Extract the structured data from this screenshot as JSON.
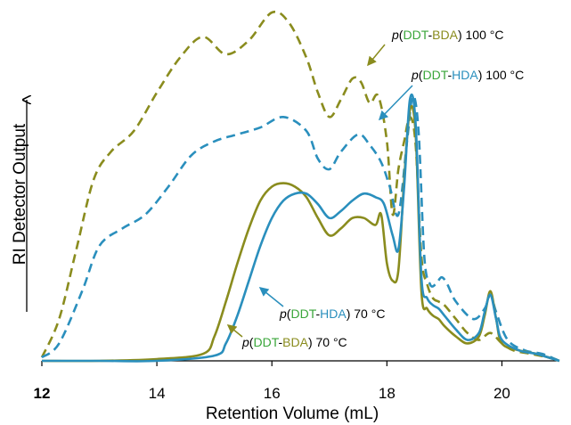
{
  "chart_data": {
    "type": "line",
    "xlabel": "Retention Volume (mL)",
    "ylabel": "RI Detector Output",
    "xlim": [
      12,
      21.0
    ],
    "ylim": [
      0,
      1.0
    ],
    "xticks": [
      12,
      14,
      16,
      18,
      20
    ],
    "xtick_labels": [
      "12",
      "14",
      "16",
      "18",
      "20"
    ],
    "grid": false,
    "legend": "none",
    "colors": {
      "bda": "#8a8c1e",
      "hda": "#2a8fbd",
      "green_text": "#3aa63a",
      "blue_text": "#2a8fbd"
    },
    "series": [
      {
        "key": "bda100",
        "color": "#8a8c1e",
        "dash": true,
        "label": {
          "prefix": "p",
          "open": "(",
          "part1": "DDT",
          "dash": "-",
          "part2": "BDA",
          "close": ")",
          "temp": " 100 °C"
        },
        "x": [
          12.0,
          12.3,
          12.6,
          12.9,
          13.2,
          13.6,
          14.0,
          14.4,
          14.8,
          15.2,
          15.6,
          16.0,
          16.3,
          16.6,
          16.8,
          17.0,
          17.2,
          17.4,
          17.55,
          17.7,
          17.85,
          18.0,
          18.1,
          18.2,
          18.3,
          18.4,
          18.5,
          18.6,
          18.7,
          18.8,
          18.9,
          19.0,
          19.2,
          19.4,
          19.6,
          19.8,
          20.0,
          20.2,
          20.5,
          20.8,
          21.0
        ],
        "y": [
          0.01,
          0.12,
          0.32,
          0.52,
          0.6,
          0.66,
          0.77,
          0.87,
          0.93,
          0.88,
          0.92,
          1.0,
          0.97,
          0.87,
          0.77,
          0.7,
          0.75,
          0.81,
          0.8,
          0.74,
          0.76,
          0.63,
          0.42,
          0.55,
          0.63,
          0.7,
          0.62,
          0.3,
          0.22,
          0.18,
          0.17,
          0.16,
          0.12,
          0.08,
          0.06,
          0.08,
          0.05,
          0.03,
          0.02,
          0.01,
          0.0
        ]
      },
      {
        "key": "hda100",
        "color": "#2a8fbd",
        "dash": true,
        "label": {
          "prefix": "p",
          "open": "(",
          "part1": "DDT",
          "dash": "-",
          "part2": "HDA",
          "close": ")",
          "temp": " 100 °C"
        },
        "x": [
          12.0,
          12.3,
          12.7,
          13.0,
          13.4,
          13.8,
          14.2,
          14.6,
          15.0,
          15.4,
          15.8,
          16.2,
          16.6,
          16.8,
          17.0,
          17.2,
          17.5,
          17.7,
          17.9,
          18.05,
          18.2,
          18.35,
          18.45,
          18.55,
          18.65,
          18.75,
          18.85,
          18.95,
          19.05,
          19.2,
          19.5,
          19.7,
          19.8,
          19.9,
          20.1,
          20.4,
          20.7,
          21.0
        ],
        "y": [
          0.01,
          0.05,
          0.2,
          0.33,
          0.38,
          0.42,
          0.5,
          0.59,
          0.63,
          0.65,
          0.67,
          0.7,
          0.66,
          0.58,
          0.55,
          0.6,
          0.65,
          0.62,
          0.57,
          0.5,
          0.42,
          0.63,
          0.76,
          0.66,
          0.3,
          0.22,
          0.22,
          0.24,
          0.22,
          0.17,
          0.12,
          0.15,
          0.19,
          0.14,
          0.06,
          0.03,
          0.02,
          0.0
        ]
      },
      {
        "key": "bda70",
        "color": "#8a8c1e",
        "dash": false,
        "label": {
          "prefix": "p",
          "open": "(",
          "part1": "DDT",
          "dash": "-",
          "part2": "BDA",
          "close": ")",
          "temp": " 70 °C"
        },
        "x": [
          12.0,
          13.0,
          14.0,
          14.8,
          15.0,
          15.2,
          15.4,
          15.6,
          15.8,
          16.0,
          16.2,
          16.4,
          16.6,
          16.8,
          17.0,
          17.2,
          17.4,
          17.6,
          17.8,
          17.9,
          18.0,
          18.1,
          18.2,
          18.3,
          18.4,
          18.5,
          18.6,
          18.7,
          18.8,
          18.9,
          19.0,
          19.2,
          19.4,
          19.6,
          19.7,
          19.8,
          19.9,
          20.0,
          20.3,
          20.6,
          21.0
        ],
        "y": [
          0.0,
          0.0,
          0.005,
          0.02,
          0.07,
          0.17,
          0.28,
          0.38,
          0.46,
          0.5,
          0.51,
          0.5,
          0.47,
          0.41,
          0.36,
          0.38,
          0.41,
          0.41,
          0.39,
          0.42,
          0.28,
          0.23,
          0.26,
          0.52,
          0.72,
          0.65,
          0.2,
          0.15,
          0.13,
          0.12,
          0.1,
          0.07,
          0.05,
          0.07,
          0.13,
          0.2,
          0.12,
          0.05,
          0.03,
          0.02,
          0.0
        ]
      },
      {
        "key": "hda70",
        "color": "#2a8fbd",
        "dash": false,
        "label": {
          "prefix": "p",
          "open": "(",
          "part1": "DDT",
          "dash": "-",
          "part2": "HDA",
          "close": ")",
          "temp": " 70 °C"
        },
        "x": [
          12.0,
          13.0,
          14.0,
          15.0,
          15.2,
          15.4,
          15.6,
          15.8,
          16.0,
          16.2,
          16.4,
          16.6,
          16.8,
          17.0,
          17.2,
          17.4,
          17.6,
          17.8,
          17.95,
          18.1,
          18.2,
          18.3,
          18.4,
          18.5,
          18.6,
          18.7,
          18.8,
          18.9,
          19.0,
          19.2,
          19.4,
          19.6,
          19.7,
          19.8,
          19.9,
          20.0,
          20.3,
          20.6,
          21.0
        ],
        "y": [
          0.0,
          0.0,
          0.0,
          0.015,
          0.05,
          0.13,
          0.23,
          0.33,
          0.41,
          0.46,
          0.48,
          0.48,
          0.45,
          0.41,
          0.43,
          0.46,
          0.48,
          0.47,
          0.45,
          0.36,
          0.32,
          0.5,
          0.75,
          0.68,
          0.24,
          0.18,
          0.16,
          0.15,
          0.13,
          0.09,
          0.06,
          0.08,
          0.14,
          0.19,
          0.12,
          0.06,
          0.03,
          0.02,
          0.0
        ]
      }
    ]
  }
}
